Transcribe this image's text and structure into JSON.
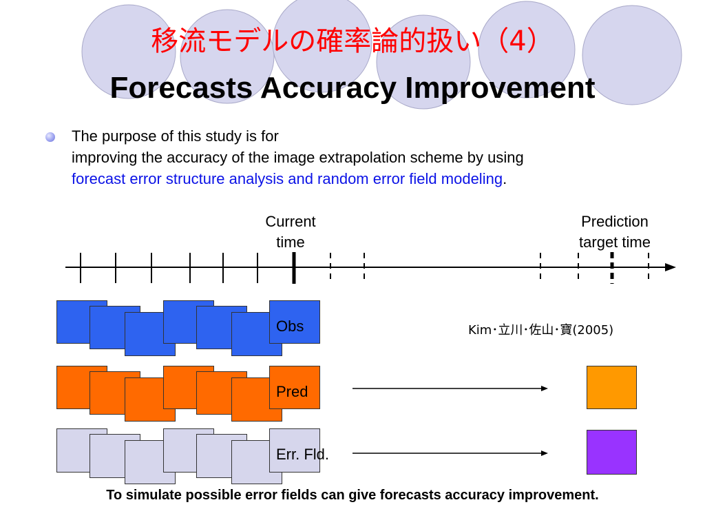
{
  "title": {
    "japanese": "移流モデルの確率論的扱い（4）",
    "english": "Forecasts Accuracy Improvement"
  },
  "bullet": {
    "line1": "The purpose of this study is for",
    "line2": "improving the accuracy of the image extrapolation scheme by using",
    "highlight": "forecast error structure analysis and random error field modeling",
    "end": "."
  },
  "timeline": {
    "current_label_1": "Current",
    "current_label_2": "time",
    "target_label_1": "Prediction",
    "target_label_2": "target time"
  },
  "reference": "Kim･立川･佐山･寶(2005)",
  "rows": {
    "obs": "Obs",
    "pred": "Pred",
    "err": "Err. Fld."
  },
  "footer": "To simulate possible error fields can give forecasts accuracy improvement.",
  "colors": {
    "title_jp": "#ff0000",
    "highlight": "#0b12e6",
    "obs": "#2e63f0",
    "pred": "#ff6a00",
    "err": "#d6d6ec",
    "pred_output": "#ff9900",
    "err_output": "#9933ff"
  }
}
